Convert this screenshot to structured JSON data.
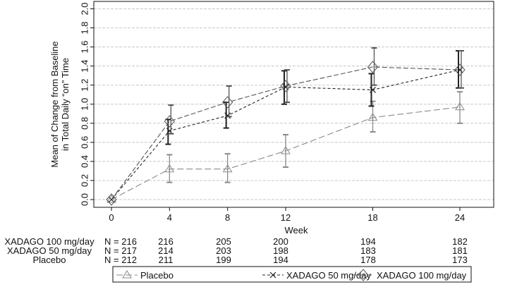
{
  "chart_data": {
    "type": "line",
    "title": "",
    "xlabel": "Week",
    "ylabel_lines": [
      "Mean of Change from Baseline",
      "in Total Daily “on” Time"
    ],
    "x": [
      0,
      4,
      8,
      12,
      18,
      24
    ],
    "x_ticks": [
      "0",
      "4",
      "8",
      "12",
      "18",
      "24"
    ],
    "y_ticks": [
      "0.0",
      "0.2",
      "0.4",
      "0.6",
      "0.8",
      "1.0",
      "1.2",
      "1.4",
      "1.6",
      "1.8",
      "2.0"
    ],
    "ylim": [
      0,
      2.0
    ],
    "grid": true,
    "series": [
      {
        "name": "Placebo",
        "marker": "triangle",
        "color": "#8a8a8a",
        "values": [
          0,
          0.32,
          0.32,
          0.51,
          0.86,
          0.97
        ],
        "lower": [
          null,
          0.18,
          0.18,
          0.34,
          0.71,
          0.8
        ],
        "upper": [
          null,
          0.47,
          0.48,
          0.68,
          1.03,
          1.13
        ]
      },
      {
        "name": "XADAGO 50 mg/day",
        "marker": "x",
        "color": "#222222",
        "values": [
          0,
          0.72,
          0.88,
          1.18,
          1.15,
          1.36
        ],
        "lower": [
          null,
          0.58,
          0.75,
          1.0,
          0.98,
          1.17
        ],
        "upper": [
          null,
          0.84,
          1.02,
          1.35,
          1.32,
          1.56
        ]
      },
      {
        "name": "XADAGO 100 mg/day",
        "marker": "diamond",
        "color": "#555555",
        "values": [
          0,
          0.82,
          1.02,
          1.19,
          1.39,
          1.36
        ],
        "lower": [
          null,
          0.69,
          0.87,
          1.02,
          1.2,
          1.17
        ],
        "upper": [
          null,
          0.99,
          1.19,
          1.36,
          1.59,
          1.56
        ]
      }
    ],
    "legend": {
      "position": "bottom",
      "entries": [
        "Placebo",
        "XADAGO 50 mg/day",
        "XADAGO 100 mg/day"
      ]
    },
    "n_table": [
      {
        "label": "XADAGO 100 mg/day",
        "values": [
          "N = 216",
          "216",
          "205",
          "200",
          "194",
          "182"
        ]
      },
      {
        "label": "XADAGO 50 mg/day",
        "values": [
          "N = 217",
          "214",
          "203",
          "198",
          "183",
          "181"
        ]
      },
      {
        "label": "Placebo",
        "values": [
          "N = 212",
          "211",
          "199",
          "194",
          "178",
          "173"
        ]
      }
    ]
  }
}
